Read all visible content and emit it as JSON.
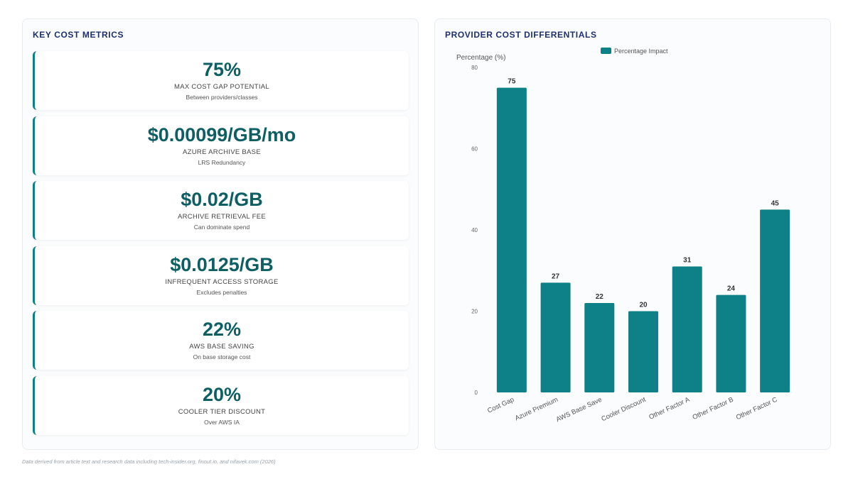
{
  "left_panel": {
    "title": "KEY COST METRICS",
    "metrics": [
      {
        "value": "75%",
        "label": "MAX COST GAP POTENTIAL",
        "sub": "Between providers/classes"
      },
      {
        "value": "$0.00099/GB/mo",
        "label": "AZURE ARCHIVE BASE",
        "sub": "LRS Redundancy"
      },
      {
        "value": "$0.02/GB",
        "label": "ARCHIVE RETRIEVAL FEE",
        "sub": "Can dominate spend"
      },
      {
        "value": "$0.0125/GB",
        "label": "INFREQUENT ACCESS STORAGE",
        "sub": "Excludes penalties"
      },
      {
        "value": "22%",
        "label": "AWS BASE SAVING",
        "sub": "On base storage cost"
      },
      {
        "value": "20%",
        "label": "COOLER TIER DISCOUNT",
        "sub": "Over AWS IA"
      }
    ]
  },
  "right_panel": {
    "title": "PROVIDER COST DIFFERENTIALS"
  },
  "colors": {
    "accent": "#0e8088",
    "value_text": "#0d5f63",
    "title_text": "#1d2f6f"
  },
  "chart_data": {
    "type": "bar",
    "categories": [
      "Cost Gap",
      "Azure Premium",
      "AWS Base Save",
      "Cooler Discount",
      "Other Factor A",
      "Other Factor B",
      "Other Factor C"
    ],
    "series": [
      {
        "name": "Percentage Impact",
        "values": [
          75,
          27,
          22,
          20,
          31,
          24,
          45
        ]
      }
    ],
    "ylabel": "Percentage (%)",
    "xlabel": "",
    "ylim": [
      0,
      80
    ],
    "yticks": [
      0,
      20,
      40,
      60,
      80
    ],
    "legend": "top-center",
    "grid": false,
    "data_labels": true
  },
  "footnote": "Data derived from article text and research data including tech-insider.org, finout.io, and nifavek.com (2026)"
}
